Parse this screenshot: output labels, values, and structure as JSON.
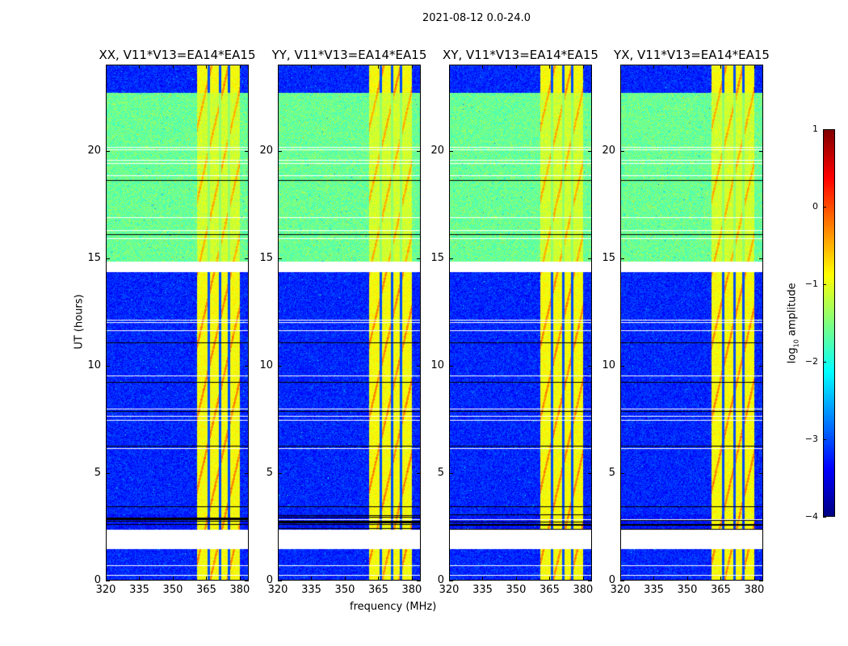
{
  "chart_data": {
    "type": "heatmap",
    "title": "2021-08-12 0.0-24.0",
    "xlabel": "frequency (MHz)",
    "ylabel": "UT (hours)",
    "xlim": [
      320,
      384
    ],
    "ylim": [
      0,
      24
    ],
    "xticks": [
      "320",
      "335",
      "350",
      "365",
      "380"
    ],
    "yticks": [
      "0",
      "5",
      "10",
      "15",
      "20"
    ],
    "panels": [
      {
        "title": "XX, V11*V13=EA14*EA15"
      },
      {
        "title": "YY, V11*V13=EA14*EA15"
      },
      {
        "title": "XY, V11*V13=EA14*EA15"
      },
      {
        "title": "YX, V11*V13=EA14*EA15"
      }
    ],
    "time_segments_hours": [
      {
        "start": 0,
        "end": 1.5,
        "background_log10": -3.2,
        "band_log10": -0.9
      },
      {
        "start": 1.5,
        "end": 2.37,
        "flagged": true
      },
      {
        "start": 2.37,
        "end": 3.1,
        "background_log10": -3.3,
        "band_log10": -0.9,
        "dense_flags": true
      },
      {
        "start": 3.1,
        "end": 14.35,
        "background_log10": -3.2,
        "band_log10": -0.9
      },
      {
        "start": 14.35,
        "end": 14.85,
        "flagged": true
      },
      {
        "start": 14.85,
        "end": 22.7,
        "background_log10": -1.6,
        "band_log10": -1.1
      },
      {
        "start": 22.7,
        "end": 24,
        "background_log10": -3.2,
        "band_log10": -0.9
      }
    ],
    "rfi_band_mhz": [
      360.5,
      380
    ],
    "rfi_gaps_mhz": [
      366,
      371,
      375
    ],
    "colorbar": {
      "label": "log",
      "label_sub": "10",
      "label_tail": " amplitude",
      "range": [
        -4,
        1
      ],
      "ticks": [
        "1",
        "0",
        "−1",
        "−2",
        "−3",
        "−4"
      ],
      "colormap": "jet"
    }
  }
}
